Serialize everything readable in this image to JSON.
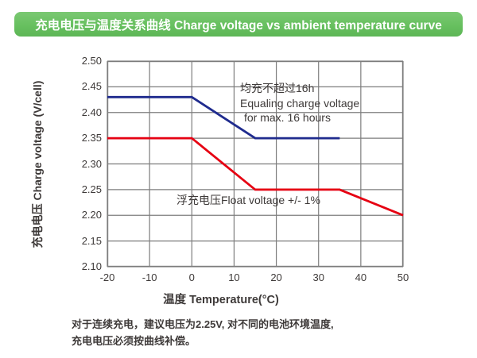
{
  "title": {
    "text": "充电电压与温度关系曲线 Charge voltage vs ambient temperature curve",
    "bg_color": "#67c05f",
    "text_color": "#ffffff"
  },
  "chart_data": {
    "type": "line",
    "xlabel": "温度 Temperature(°C)",
    "ylabel": "充电电压 Charge voltage (V/cell)",
    "xlim": [
      -20,
      50
    ],
    "ylim": [
      2.1,
      2.5
    ],
    "xticks": [
      -20,
      -10,
      0,
      10,
      20,
      30,
      40,
      50
    ],
    "yticks": [
      2.5,
      2.45,
      2.4,
      2.35,
      2.3,
      2.25,
      2.2,
      2.15,
      2.1
    ],
    "grid": true,
    "grid_color": "#7d7d7d",
    "legend_position": "inline-annotations",
    "series": [
      {
        "name": "Equalizing charge voltage",
        "color": "#1f2b8e",
        "points": [
          [
            -20,
            2.43
          ],
          [
            0,
            2.43
          ],
          [
            15,
            2.35
          ],
          [
            35,
            2.35
          ]
        ]
      },
      {
        "name": "Float voltage",
        "color": "#e60012",
        "points": [
          [
            -20,
            2.35
          ],
          [
            0,
            2.35
          ],
          [
            15,
            2.25
          ],
          [
            35,
            2.25
          ],
          [
            50,
            2.2
          ]
        ]
      }
    ],
    "annotations": [
      {
        "id": "equalizing-note",
        "line1": "均充不超过16h",
        "line2": "Equaling charge voltage",
        "line3": "for max. 16 hours"
      },
      {
        "id": "float-note",
        "line1": "浮充电压Float voltage +/- 1%"
      }
    ]
  },
  "footer": {
    "line1": "对于连续充电，建议电压为2.25V, 对不同的电池环境温度,",
    "line2": "充电电压必须按曲线补偿。"
  }
}
